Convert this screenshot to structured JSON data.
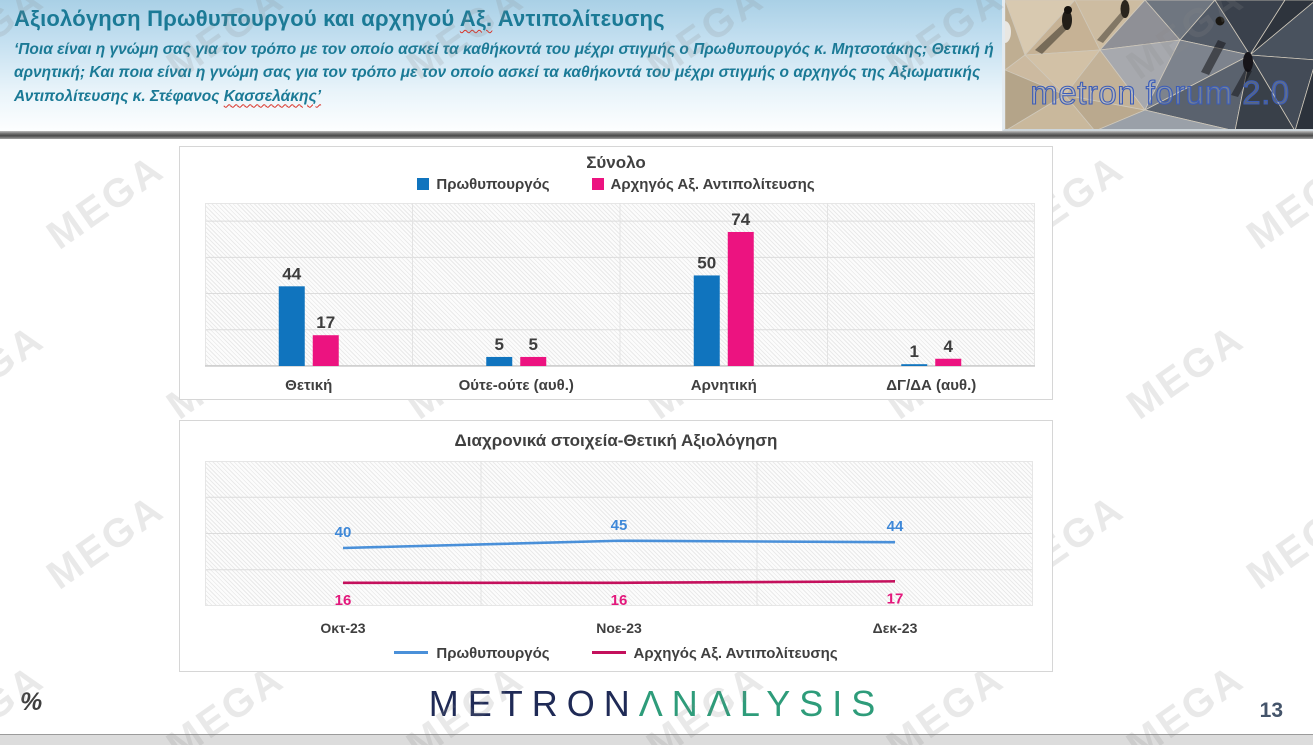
{
  "header": {
    "title_part1": "Αξιολόγηση Πρωθυπουργού και αρχηγού ",
    "title_misspelled": "Αξ.",
    "title_part2": " Αντιπολίτευσης",
    "subtitle_part1": "‘Ποια είναι η γνώμη σας για τον τρόπο με τον οποίο ασκεί τα καθήκοντά του μέχρι στιγμής ο Πρωθυπουργός κ. Μητσοτάκης; Θετική ή αρνητική; Και ποια είναι η γνώμη σας για τον τρόπο με τον οποίο ασκεί τα καθήκοντά του μέχρι στιγμής ο αρχηγός της Αξιωματικής Αντιπολίτευσης κ. Στέφανος ",
    "subtitle_misspelled": "Κασσελάκης’",
    "brand_logo_text": "metron forum 2.0"
  },
  "chart_data": [
    {
      "type": "bar",
      "title": "Σύνολο",
      "categories": [
        "Θετική",
        "Ούτε-ούτε (αυθ.)",
        "Αρνητική",
        "ΔΓ/ΔΑ (αυθ.)"
      ],
      "series": [
        {
          "name": "Πρωθυπουργός",
          "color": "#1074BE",
          "values": [
            44,
            5,
            50,
            1
          ]
        },
        {
          "name": "Αρχηγός Αξ. Αντιπολίτευσης",
          "color": "#EC1380",
          "values": [
            17,
            5,
            74,
            4
          ]
        }
      ],
      "ylim": [
        0,
        90
      ],
      "gridline_step": 20,
      "legend_position": "top",
      "grid": "horizontal+category-separators",
      "xlabel": "",
      "ylabel": ""
    },
    {
      "type": "line",
      "title": "Διαχρονικά στοιχεία-Θετική Αξιολόγηση",
      "x": [
        "Οκτ-23",
        "Νοε-23",
        "Δεκ-23"
      ],
      "series": [
        {
          "name": "Πρωθυπουργός",
          "color": "#4A90D9",
          "label_color": "#3E88D8",
          "values": [
            40,
            45,
            44
          ]
        },
        {
          "name": "Αρχηγός Αξ. Αντιπολίτευσης",
          "color": "#C4105C",
          "label_color": "#E3187C",
          "values": [
            16,
            16,
            17
          ]
        }
      ],
      "ylim": [
        0,
        100
      ],
      "gridline_step": 25,
      "legend_position": "bottom",
      "grid": "horizontal+category-separators",
      "xlabel": "",
      "ylabel": ""
    }
  ],
  "footer": {
    "logo_metron": "METRON",
    "logo_analysis": "ΛNΛLYSIS",
    "unit_label": "%",
    "page_number": "13"
  },
  "watermark": {
    "text": "MEGA"
  }
}
